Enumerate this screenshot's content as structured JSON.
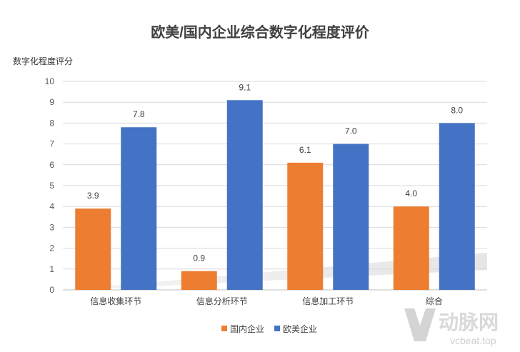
{
  "chart_data": {
    "type": "bar",
    "title": "欧美/国内企业综合数字化程度评价",
    "ylabel": "数字化程度评分",
    "xlabel": "",
    "categories": [
      "信息收集环节",
      "信息分析环节",
      "信息加工环节",
      "综合"
    ],
    "series": [
      {
        "name": "国内企业",
        "color": "#ED7D31",
        "values": [
          3.9,
          0.9,
          6.1,
          4.0
        ],
        "labels": [
          "3.9",
          "0.9",
          "6.1",
          "4.0"
        ]
      },
      {
        "name": "欧美企业",
        "color": "#4472C4",
        "values": [
          7.8,
          9.1,
          7.0,
          8.0
        ],
        "labels": [
          "7.8",
          "9.1",
          "7.0",
          "8.0"
        ]
      }
    ],
    "ylim": [
      0,
      10
    ],
    "yticks": [
      "0",
      "1",
      "2",
      "3",
      "4",
      "5",
      "6",
      "7",
      "8",
      "9",
      "10"
    ],
    "grid": true,
    "legend_position": "bottom"
  },
  "watermark": {
    "brand": "动脉网",
    "site": "vcbeat.top"
  }
}
